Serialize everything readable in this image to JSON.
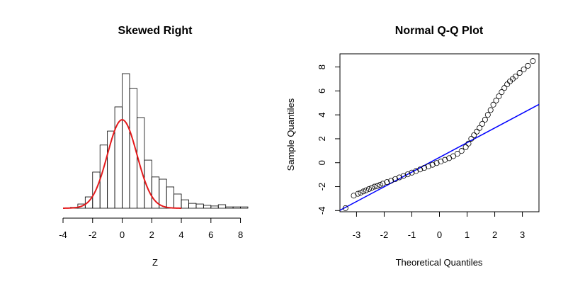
{
  "chart_data": [
    {
      "type": "histogram",
      "title": "Skewed Right",
      "xlabel": "Z",
      "ylabel": "",
      "xlim": [
        -4,
        8.5
      ],
      "x_ticks": [
        -4,
        -2,
        0,
        2,
        4,
        6,
        8
      ],
      "bin_width": 0.5,
      "bins": [
        {
          "x0": -3.5,
          "x1": -3.0,
          "density": 0.004
        },
        {
          "x0": -3.0,
          "x1": -2.5,
          "density": 0.019
        },
        {
          "x0": -2.5,
          "x1": -2.0,
          "density": 0.051
        },
        {
          "x0": -2.0,
          "x1": -1.5,
          "density": 0.163
        },
        {
          "x0": -1.5,
          "x1": -1.0,
          "density": 0.285
        },
        {
          "x0": -1.0,
          "x1": -0.5,
          "density": 0.348
        },
        {
          "x0": -0.5,
          "x1": 0.0,
          "density": 0.457
        },
        {
          "x0": 0.0,
          "x1": 0.5,
          "density": 0.607
        },
        {
          "x0": 0.5,
          "x1": 1.0,
          "density": 0.541
        },
        {
          "x0": 1.0,
          "x1": 1.5,
          "density": 0.409
        },
        {
          "x0": 1.5,
          "x1": 2.0,
          "density": 0.217
        },
        {
          "x0": 2.0,
          "x1": 2.5,
          "density": 0.141
        },
        {
          "x0": 2.5,
          "x1": 3.0,
          "density": 0.131
        },
        {
          "x0": 3.0,
          "x1": 3.5,
          "density": 0.096
        },
        {
          "x0": 3.5,
          "x1": 4.0,
          "density": 0.064
        },
        {
          "x0": 4.0,
          "x1": 4.5,
          "density": 0.038
        },
        {
          "x0": 4.5,
          "x1": 5.0,
          "density": 0.022
        },
        {
          "x0": 5.0,
          "x1": 5.5,
          "density": 0.019
        },
        {
          "x0": 5.5,
          "x1": 6.0,
          "density": 0.013
        },
        {
          "x0": 6.0,
          "x1": 6.5,
          "density": 0.01
        },
        {
          "x0": 6.5,
          "x1": 7.0,
          "density": 0.016
        },
        {
          "x0": 7.0,
          "x1": 7.5,
          "density": 0.006
        },
        {
          "x0": 7.5,
          "x1": 8.0,
          "density": 0.006
        },
        {
          "x0": 8.0,
          "x1": 8.5,
          "density": 0.006
        }
      ],
      "overlay_curve": {
        "type": "normal-density",
        "mean": 0,
        "sd": 1,
        "color": "#e41a1c"
      }
    },
    {
      "type": "scatter",
      "title": "Normal Q-Q Plot",
      "xlabel": "Theoretical Quantiles",
      "ylabel": "Sample Quantiles",
      "xlim": [
        -3.6,
        3.6
      ],
      "ylim": [
        -4.1,
        9.1
      ],
      "x_ticks": [
        -3,
        -2,
        -1,
        0,
        1,
        2,
        3
      ],
      "y_ticks": [
        -4,
        -2,
        0,
        2,
        4,
        6,
        8
      ],
      "points": [
        [
          -3.4,
          -3.8
        ],
        [
          -3.1,
          -2.75
        ],
        [
          -2.95,
          -2.6
        ],
        [
          -2.85,
          -2.5
        ],
        [
          -2.75,
          -2.4
        ],
        [
          -2.65,
          -2.3
        ],
        [
          -2.55,
          -2.2
        ],
        [
          -2.45,
          -2.1
        ],
        [
          -2.35,
          -2.0
        ],
        [
          -2.25,
          -1.95
        ],
        [
          -2.15,
          -1.85
        ],
        [
          -2.05,
          -1.75
        ],
        [
          -1.9,
          -1.62
        ],
        [
          -1.75,
          -1.5
        ],
        [
          -1.6,
          -1.37
        ],
        [
          -1.45,
          -1.23
        ],
        [
          -1.3,
          -1.1
        ],
        [
          -1.15,
          -0.97
        ],
        [
          -1.0,
          -0.83
        ],
        [
          -0.85,
          -0.7
        ],
        [
          -0.7,
          -0.56
        ],
        [
          -0.55,
          -0.43
        ],
        [
          -0.4,
          -0.3
        ],
        [
          -0.25,
          -0.17
        ],
        [
          -0.1,
          -0.03
        ],
        [
          0.05,
          0.1
        ],
        [
          0.2,
          0.24
        ],
        [
          0.35,
          0.38
        ],
        [
          0.5,
          0.55
        ],
        [
          0.65,
          0.75
        ],
        [
          0.8,
          0.98
        ],
        [
          0.95,
          1.3
        ],
        [
          1.05,
          1.6
        ],
        [
          1.15,
          2.0
        ],
        [
          1.25,
          2.3
        ],
        [
          1.35,
          2.6
        ],
        [
          1.45,
          2.9
        ],
        [
          1.55,
          3.25
        ],
        [
          1.65,
          3.6
        ],
        [
          1.75,
          4.0
        ],
        [
          1.85,
          4.4
        ],
        [
          1.95,
          4.85
        ],
        [
          2.05,
          5.2
        ],
        [
          2.15,
          5.55
        ],
        [
          2.25,
          5.9
        ],
        [
          2.35,
          6.25
        ],
        [
          2.45,
          6.55
        ],
        [
          2.55,
          6.8
        ],
        [
          2.65,
          7.0
        ],
        [
          2.75,
          7.2
        ],
        [
          2.9,
          7.5
        ],
        [
          3.05,
          7.8
        ],
        [
          3.2,
          8.1
        ],
        [
          3.38,
          8.5
        ]
      ],
      "reference_line": {
        "points": [
          [
            -3.6,
            -3.98
          ],
          [
            3.6,
            4.87
          ]
        ],
        "color": "#0000ff"
      }
    }
  ]
}
